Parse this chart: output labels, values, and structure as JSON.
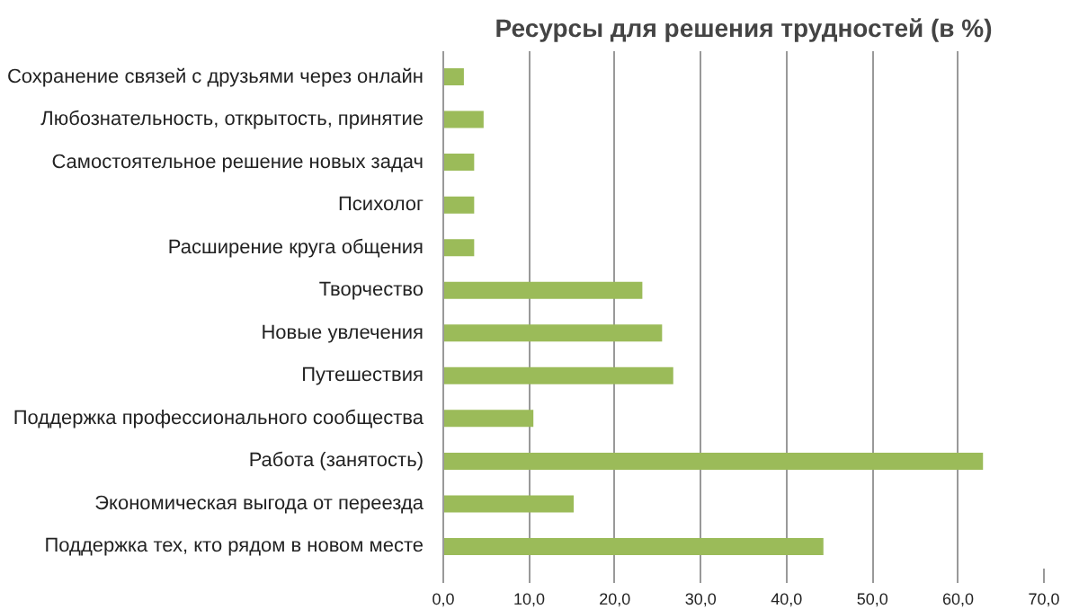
{
  "chart_data": {
    "type": "bar",
    "orientation": "horizontal",
    "title": "Ресурсы для решения трудностей (в %)",
    "categories": [
      "Сохранение связей с друзьями через онлайн",
      "Любознательность, открытость, принятие",
      "Самостоятельное решение новых задач",
      "Психолог",
      "Расширение круга общения",
      "Творчество",
      "Новые увлечения",
      "Путешествия",
      "Поддержка профессионального сообщества",
      "Работа (занятость)",
      "Экономическая выгода от переезда",
      "Поддержка тех, кто рядом в новом месте"
    ],
    "values": [
      2.4,
      4.7,
      3.6,
      3.6,
      3.6,
      23.2,
      25.5,
      26.8,
      10.5,
      62.9,
      15.2,
      44.3
    ],
    "color": "#9bbb59",
    "xlim": [
      0,
      70
    ],
    "xticks": [
      {
        "value": 0,
        "label": "0,0"
      },
      {
        "value": 10,
        "label": "10,0"
      },
      {
        "value": 20,
        "label": "20,0"
      },
      {
        "value": 30,
        "label": "30,0"
      },
      {
        "value": 40,
        "label": "40,0"
      },
      {
        "value": 50,
        "label": "50,0"
      },
      {
        "value": 60,
        "label": "60,0"
      },
      {
        "value": 70,
        "label": "70,0"
      }
    ],
    "grid": "x"
  }
}
